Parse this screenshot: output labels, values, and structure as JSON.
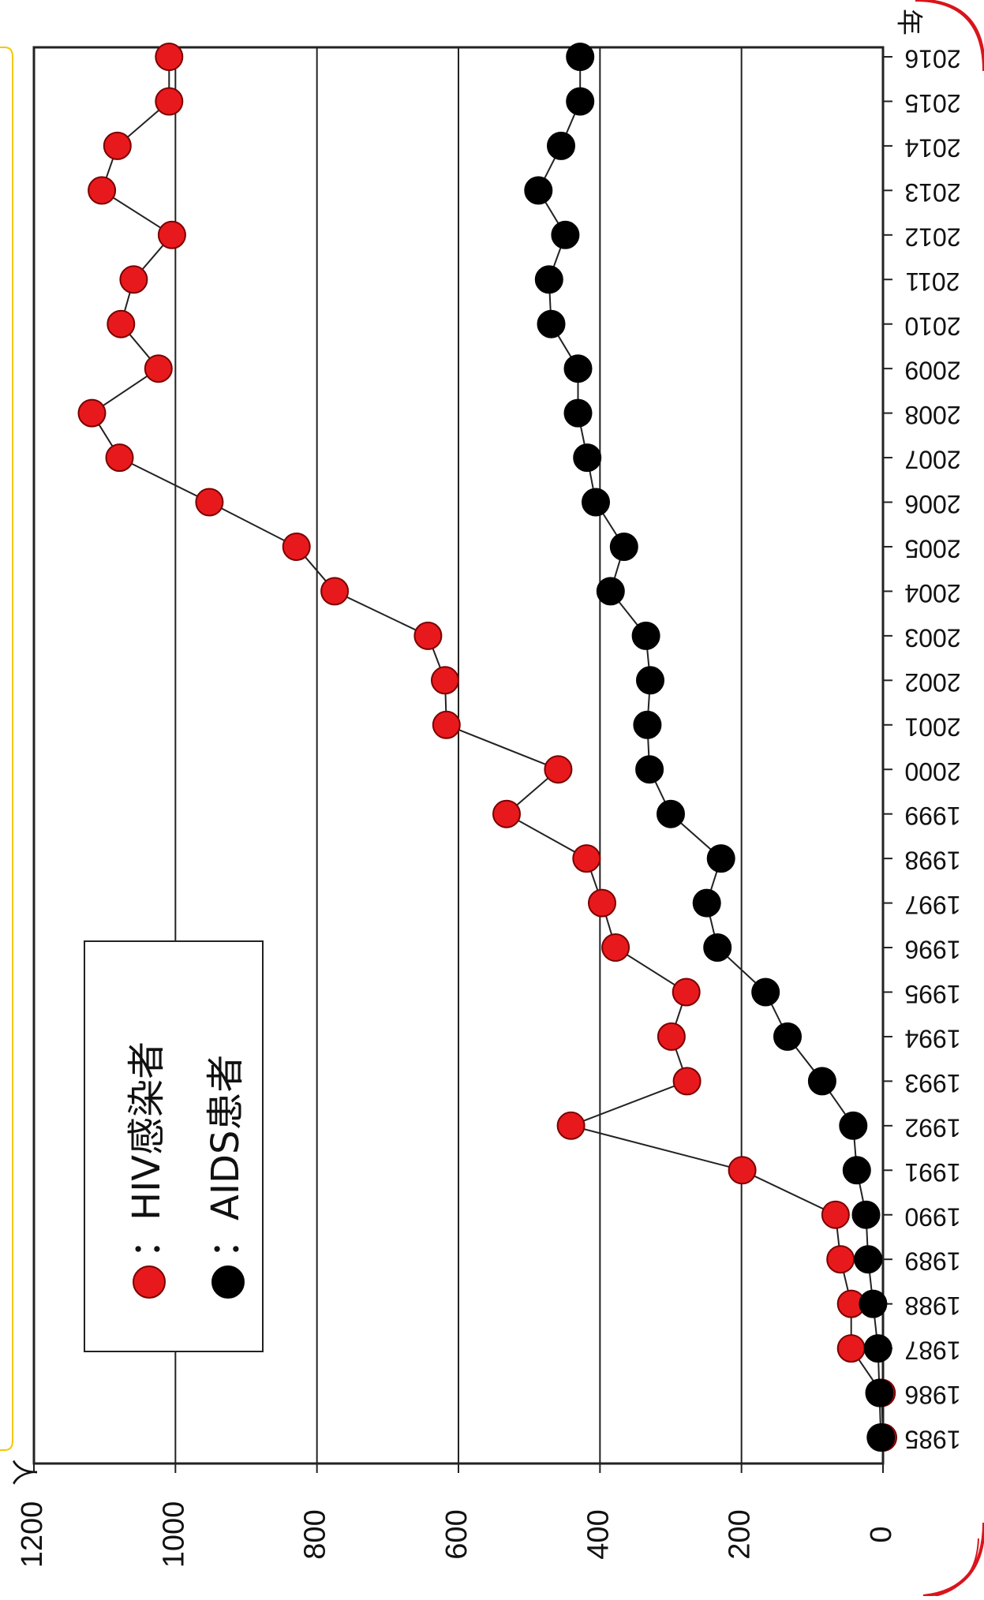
{
  "chart_data": {
    "type": "line",
    "orientation": "rotated-90",
    "xunit": "年",
    "yunit": "人",
    "x": [
      "1985",
      "1986",
      "1987",
      "1988",
      "1989",
      "1990",
      "1991",
      "1992",
      "1993",
      "1994",
      "1995",
      "1996",
      "1997",
      "1998",
      "1999",
      "2000",
      "2001",
      "2002",
      "2003",
      "2004",
      "2005",
      "2006",
      "2007",
      "2008",
      "2009",
      "2010",
      "2011",
      "2012",
      "2013",
      "2014",
      "2015",
      "2016"
    ],
    "yticks": [
      0,
      200,
      400,
      600,
      800,
      1000,
      1200
    ],
    "ylim": [
      0,
      1200
    ],
    "grid": true,
    "legend_position": "top-left",
    "series": [
      {
        "name": "HIV感染者",
        "legend_label": "：HIV感染者",
        "color": "#e8191c",
        "values": [
          0,
          2,
          45,
          45,
          60,
          67,
          199,
          441,
          277,
          299,
          278,
          378,
          397,
          419,
          532,
          459,
          617,
          619,
          643,
          775,
          829,
          952,
          1079,
          1118,
          1024,
          1077,
          1059,
          1005,
          1104,
          1082,
          1009,
          1009
        ]
      },
      {
        "name": "AIDS患者",
        "legend_label": "：AIDS患者",
        "color": "#000000",
        "values": [
          3,
          5,
          7,
          14,
          21,
          24,
          37,
          42,
          86,
          135,
          166,
          234,
          249,
          229,
          300,
          330,
          333,
          329,
          335,
          385,
          366,
          406,
          418,
          431,
          431,
          469,
          472,
          449,
          487,
          455,
          428,
          428
        ]
      }
    ]
  }
}
